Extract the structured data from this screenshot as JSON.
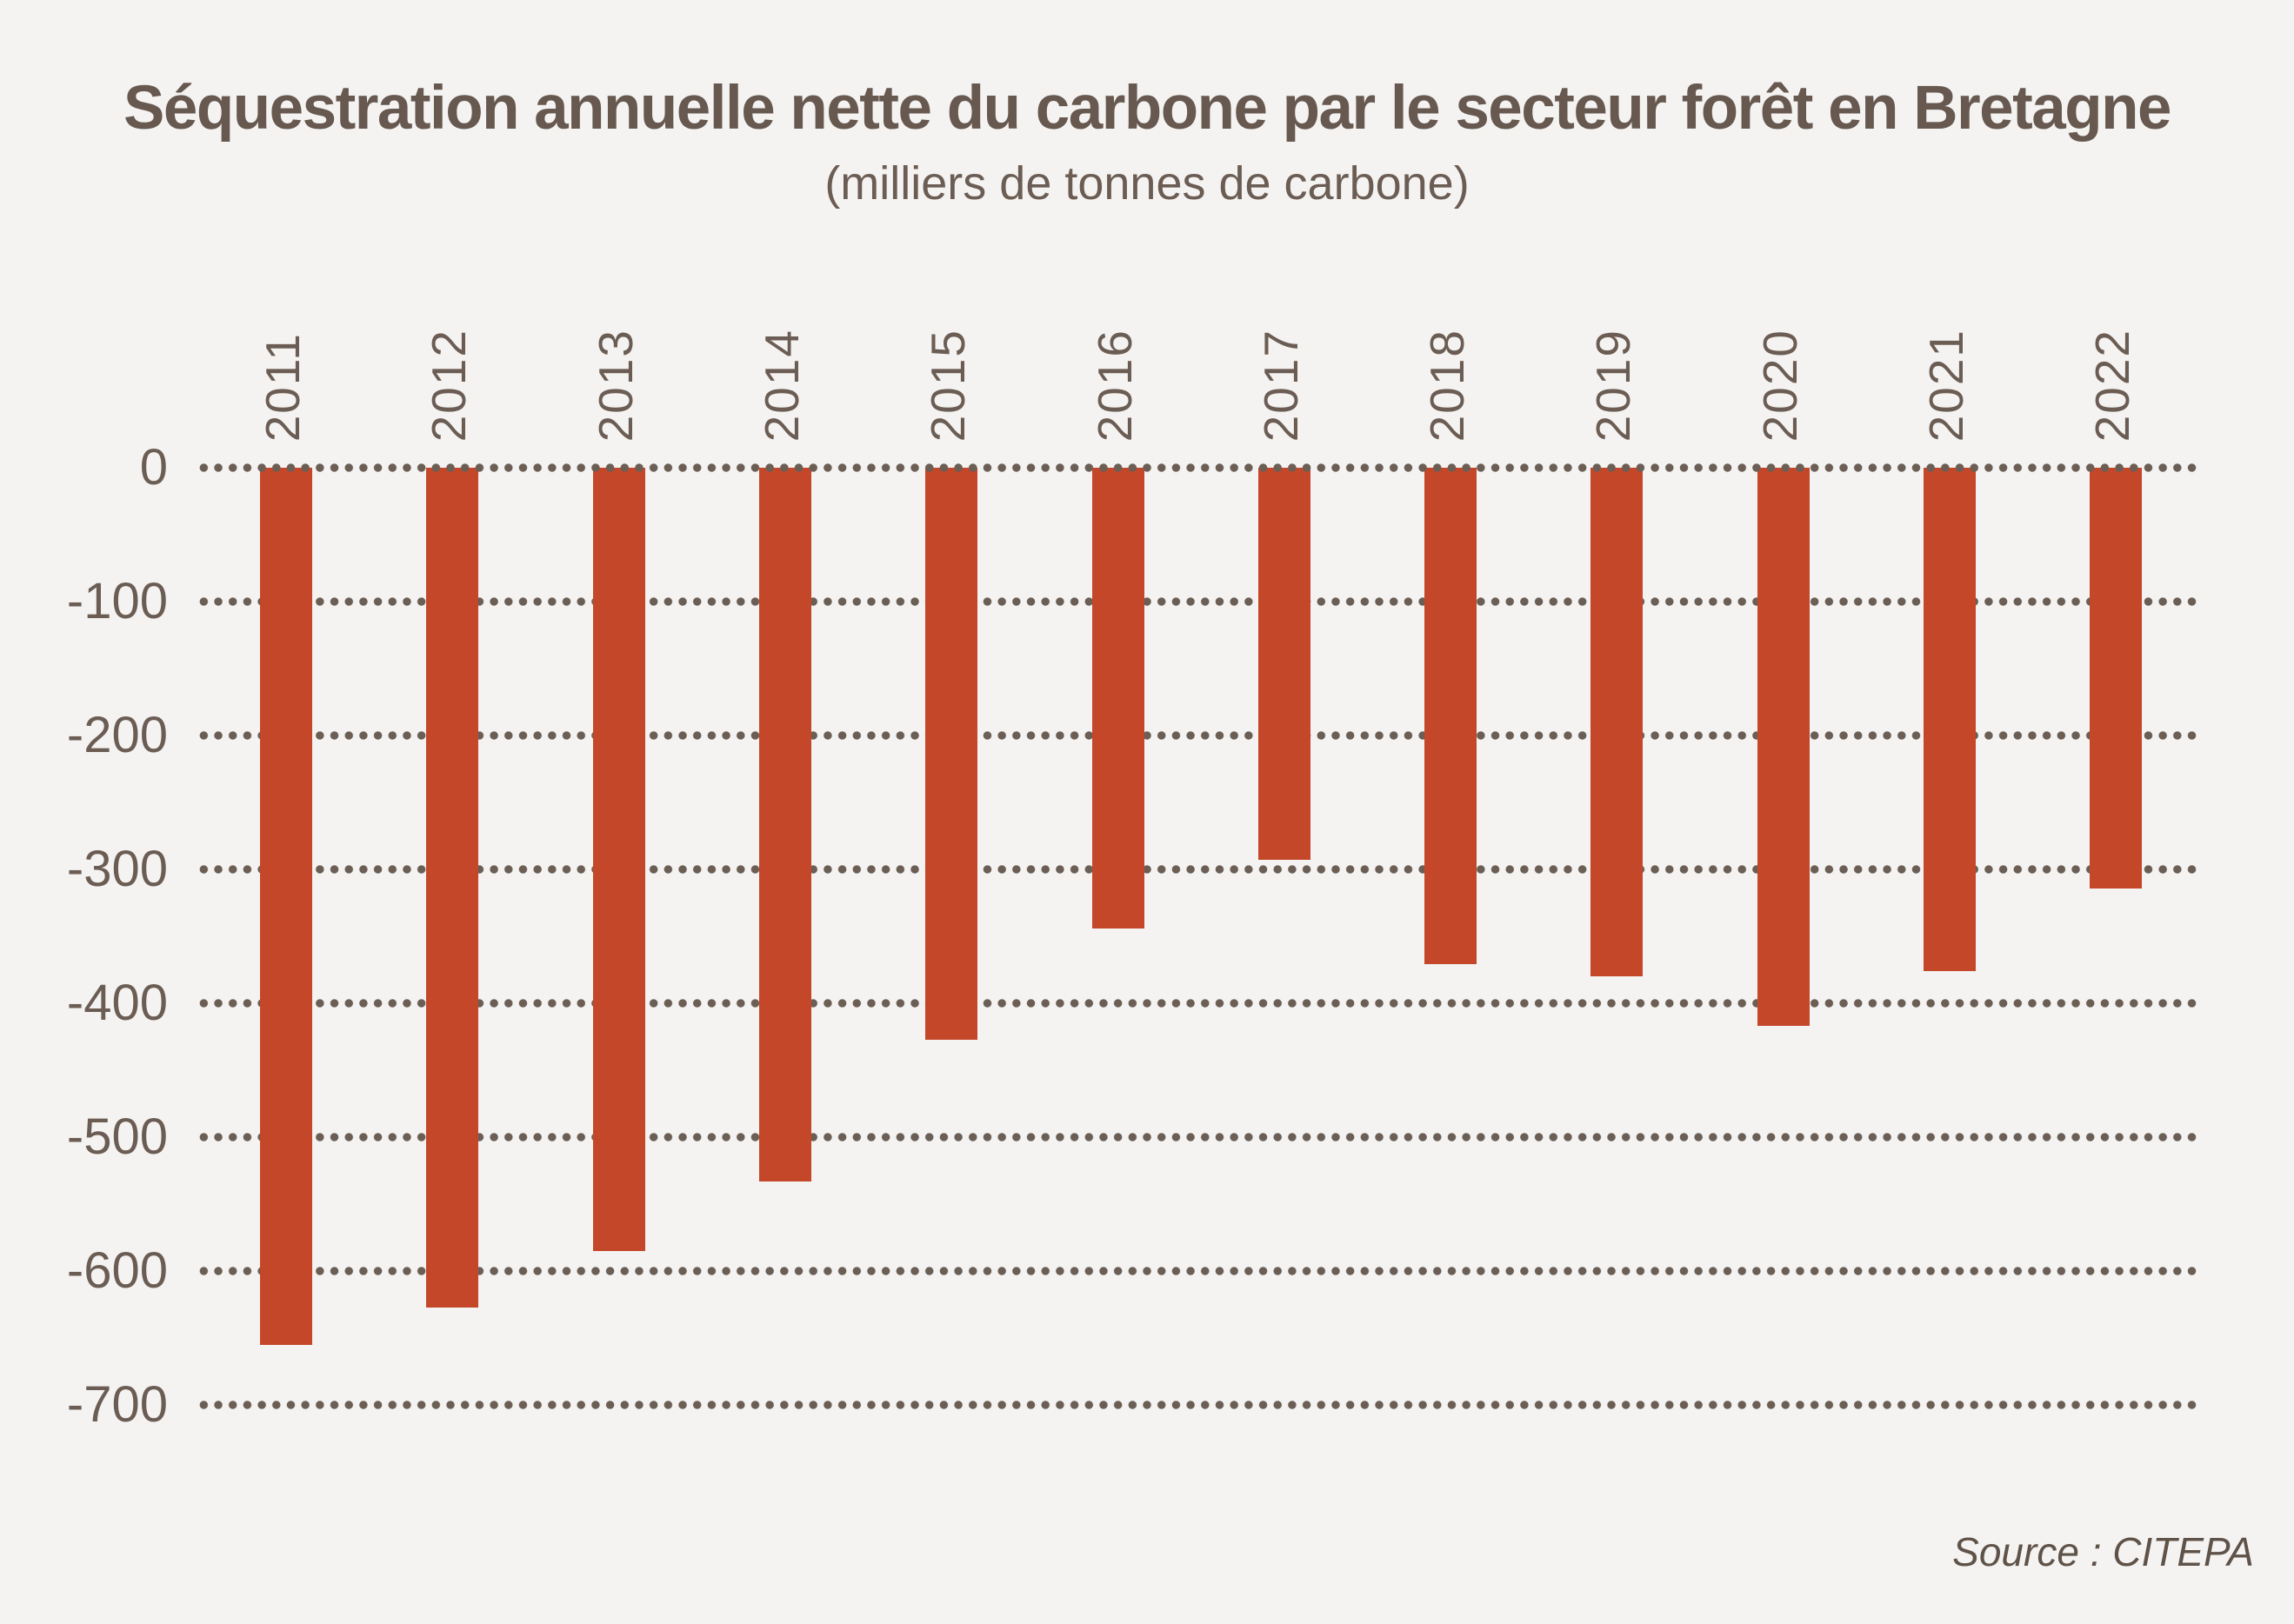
{
  "page": {
    "title": "Séquestration annuelle nette du carbone par le secteur forêt en Bretagne",
    "subtitle": "(milliers de tonnes de carbone)",
    "source": "Source : CITEPA"
  },
  "colors": {
    "background": "#f4f3f1",
    "bar": "#c4472a",
    "title_text": "#675950",
    "axis_text": "#6b5d54",
    "grid_dots": "#6b5e55",
    "source_text": "#5f5349"
  },
  "chart_data": {
    "type": "bar",
    "title": "Séquestration annuelle nette du carbone par le secteur forêt en Bretagne",
    "subtitle": "(milliers de tonnes de carbone)",
    "unit": "milliers de tonnes de carbone",
    "categories": [
      "2011",
      "2012",
      "2013",
      "2014",
      "2015",
      "2016",
      "2017",
      "2018",
      "2019",
      "2020",
      "2021",
      "2022"
    ],
    "values": [
      -655,
      -627,
      -585,
      -533,
      -427,
      -344,
      -293,
      -371,
      -380,
      -417,
      -376,
      -314
    ],
    "xlabel": "",
    "ylabel": "",
    "ylim": [
      -700,
      0
    ],
    "y_ticks": [
      0,
      -100,
      -200,
      -300,
      -400,
      -500,
      -600,
      -700
    ],
    "grid": "horizontal-dotted",
    "legend_position": "none",
    "bar_color": "#c4472a",
    "source": "Source : CITEPA"
  }
}
